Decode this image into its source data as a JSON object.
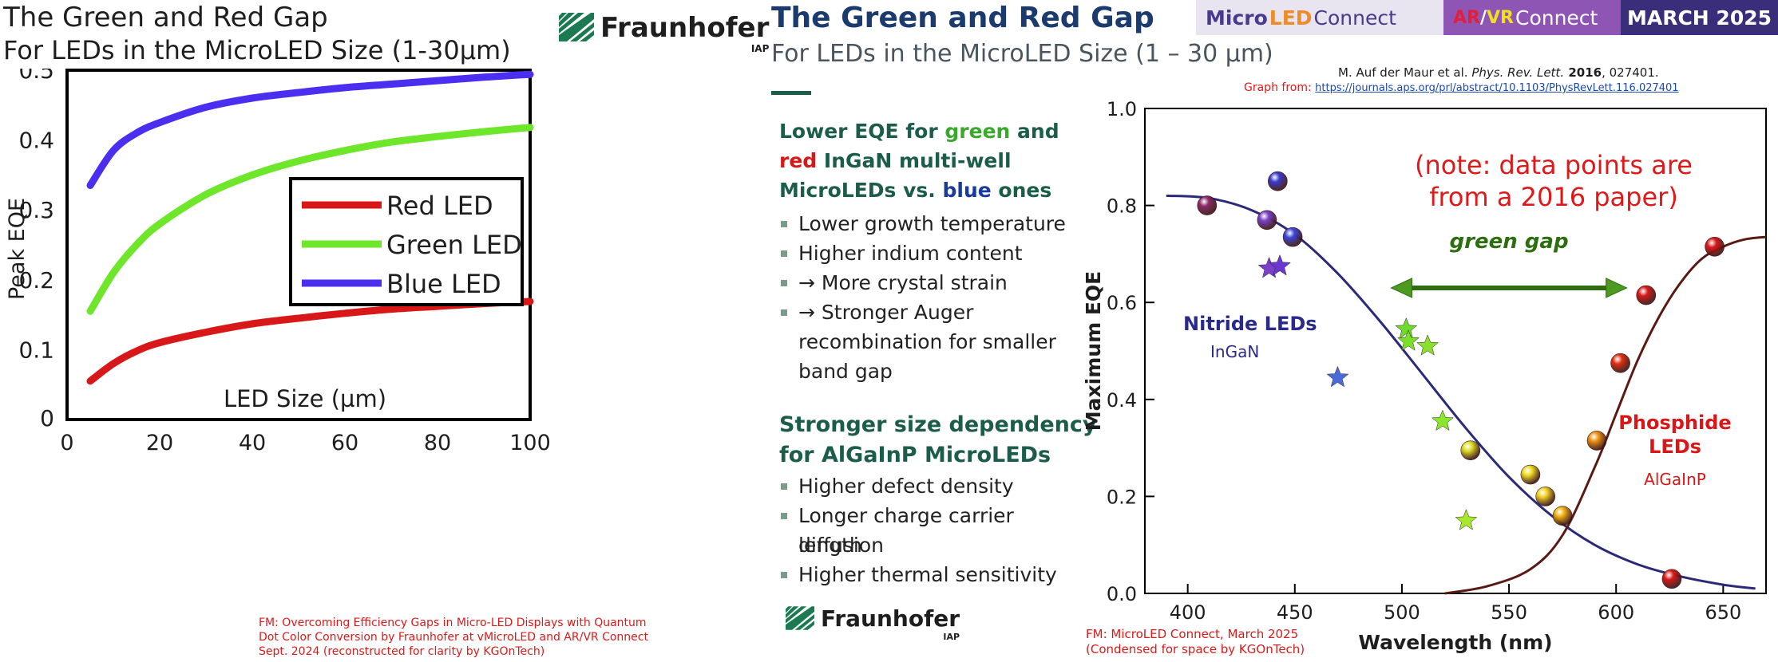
{
  "left_slide": {
    "title": "The Green and Red Gap",
    "subtitle": "For LEDs in the MicroLED Size (1-30µm)",
    "logo_text": "Fraunhofer",
    "logo_sub": "IAP",
    "footnote_lines": [
      "FM: Overcoming Efficiency Gaps in Micro-LED Displays with Quantum",
      "Dot Color Conversion by Fraunhofer at vMicroLED and AR/VR Connect",
      "Sept. 2024 (reconstructed for clarity by KGOnTech)"
    ]
  },
  "right_slide": {
    "title": "The Green and Red Gap",
    "subtitle": "For LEDs in the MicroLED Size (1 – 30 µm)",
    "banner": {
      "microled_a": "Micro",
      "microled_b": "LED",
      "microled_c": "Connect",
      "arvr_a": "AR",
      "arvr_sep": "/",
      "arvr_b": "VR",
      "arvr_c": "Connect",
      "date": "MARCH 2025",
      "colors": {
        "navy": "#4a3a8c",
        "purple_bg": "#8e55b5",
        "red": "#e0203a",
        "orange": "#f08c28"
      }
    },
    "section1_line1_a": "Lower EQE for ",
    "section1_line1_b": "green",
    "section1_line1_c": " and",
    "section1_line2_a": "red",
    "section1_line2_b": " InGaN multi-well",
    "section1_line3_a": "MicroLEDs vs. ",
    "section1_line3_b": "blue",
    "section1_line3_c": " ones",
    "section1_bullets": [
      "Lower growth temperature",
      "Higher indium content",
      "→ More crystal strain",
      "→ Stronger Auger"
    ],
    "section1_bullet4_cont1": "recombination for smaller",
    "section1_bullet4_cont2": "band gap",
    "section2_line1": "Stronger size dependency",
    "section2_line2": "for AlGaInP MicroLEDs",
    "section2_bullets": [
      "Higher defect density",
      "Longer charge carrier diffusion"
    ],
    "section2_bullet2_cont": "length",
    "section2_bullet3": "Higher thermal sensitivity",
    "logo_text": "Fraunhofer",
    "logo_sub": "IAP",
    "footnote_lines": [
      "FM: MicroLED Connect, March 2025",
      "(Condensed for space by KGOnTech)"
    ],
    "citation_a": "M. Auf der Maur et al. ",
    "citation_journal": "Phys. Rev. Lett.",
    "citation_year": " 2016",
    "citation_rest": ", 027401.",
    "graph_from_label": "Graph from:",
    "graph_from_url": "https://journals.aps.org/prl/abstract/10.1103/PhysRevLett.116.027401"
  },
  "colors": {
    "red": "#d81818",
    "green": "#6ee62a",
    "blue": "#4a2ff0",
    "teal": "#1b5c4a",
    "navy_curve": "#2a2a78",
    "brown_curve": "#5a1a14",
    "dark_green_arrow": "#2e6e10",
    "note_red": "#e01818"
  },
  "chart_data": [
    {
      "type": "line",
      "xlabel": "LED Size (µm)",
      "ylabel": "Peak EQE",
      "xlim": [
        0,
        100
      ],
      "ylim": [
        0,
        0.5
      ],
      "x_ticks": [
        0,
        20,
        40,
        60,
        80,
        100
      ],
      "y_ticks": [
        0,
        0.1,
        0.2,
        0.3,
        0.4,
        0.5
      ],
      "y_tick_labels": [
        "0",
        "0.1",
        "0.2",
        "0.3",
        "0.4",
        "0.5"
      ],
      "grid": false,
      "legend": "center-right",
      "series": [
        {
          "name": "Red LED",
          "color": "#d81818",
          "x": [
            5,
            10,
            15,
            20,
            30,
            40,
            50,
            60,
            70,
            80,
            90,
            100
          ],
          "y": [
            0.055,
            0.08,
            0.098,
            0.11,
            0.125,
            0.137,
            0.145,
            0.152,
            0.158,
            0.162,
            0.166,
            0.169
          ]
        },
        {
          "name": "Green LED",
          "color": "#6ee62a",
          "x": [
            5,
            10,
            15,
            20,
            30,
            40,
            50,
            60,
            70,
            80,
            90,
            100
          ],
          "y": [
            0.155,
            0.21,
            0.25,
            0.28,
            0.322,
            0.35,
            0.37,
            0.385,
            0.397,
            0.405,
            0.412,
            0.418
          ]
        },
        {
          "name": "Blue LED",
          "color": "#4a2ff0",
          "x": [
            5,
            10,
            15,
            20,
            30,
            40,
            50,
            60,
            70,
            80,
            90,
            100
          ],
          "y": [
            0.335,
            0.385,
            0.41,
            0.425,
            0.447,
            0.46,
            0.468,
            0.475,
            0.48,
            0.485,
            0.49,
            0.494
          ]
        }
      ]
    },
    {
      "type": "scatter",
      "xlabel": "Wavelength (nm)",
      "ylabel": "Maximum EQE",
      "xlim": [
        380,
        670
      ],
      "ylim": [
        0,
        1.0
      ],
      "x_ticks": [
        400,
        450,
        500,
        550,
        600,
        650
      ],
      "y_ticks": [
        0,
        0.2,
        0.4,
        0.6,
        0.8,
        1.0
      ],
      "y_tick_labels": [
        "0.0",
        "0.2",
        "0.4",
        "0.6",
        "0.8",
        "1.0"
      ],
      "grid": false,
      "annotations": {
        "note_line1": "(note: data points are",
        "note_line2": "from a 2016 paper)",
        "green_gap": "green gap",
        "nitride_label": "Nitride LEDs",
        "nitride_sub": "InGaN",
        "phosphide_label1": "Phosphide",
        "phosphide_label2": "LEDs",
        "phosphide_sub": "AlGaInP"
      },
      "arrow_range": [
        495,
        605
      ],
      "arrow_y": 0.63,
      "nitride_curve": {
        "x": [
          390,
          410,
          430,
          450,
          470,
          490,
          510,
          530,
          550,
          570,
          590,
          610,
          630,
          650,
          665
        ],
        "y": [
          0.82,
          0.815,
          0.79,
          0.74,
          0.66,
          0.56,
          0.45,
          0.34,
          0.24,
          0.16,
          0.1,
          0.06,
          0.035,
          0.018,
          0.01
        ]
      },
      "phosphide_curve": {
        "x": [
          520,
          540,
          560,
          575,
          590,
          600,
          610,
          620,
          630,
          640,
          650,
          660,
          670
        ],
        "y": [
          0.0,
          0.015,
          0.05,
          0.12,
          0.26,
          0.37,
          0.48,
          0.57,
          0.64,
          0.69,
          0.715,
          0.73,
          0.735
        ]
      },
      "spheres": [
        {
          "x": 409,
          "y": 0.8,
          "color": "#8a2a6a"
        },
        {
          "x": 437,
          "y": 0.77,
          "color": "#7a40c8"
        },
        {
          "x": 442,
          "y": 0.85,
          "color": "#3a3ad0"
        },
        {
          "x": 449,
          "y": 0.735,
          "color": "#3a46d8"
        },
        {
          "x": 532,
          "y": 0.295,
          "color": "#dede22"
        },
        {
          "x": 560,
          "y": 0.245,
          "color": "#eedd22"
        },
        {
          "x": 567,
          "y": 0.2,
          "color": "#f2d020"
        },
        {
          "x": 575,
          "y": 0.16,
          "color": "#f0b010"
        },
        {
          "x": 591,
          "y": 0.315,
          "color": "#f09010"
        },
        {
          "x": 602,
          "y": 0.475,
          "color": "#e03010"
        },
        {
          "x": 614,
          "y": 0.615,
          "color": "#d81818"
        },
        {
          "x": 626,
          "y": 0.03,
          "color": "#d81818"
        },
        {
          "x": 646,
          "y": 0.715,
          "color": "#d81818"
        }
      ],
      "stars": [
        {
          "x": 438,
          "y": 0.67,
          "color": "#7a40c8"
        },
        {
          "x": 443,
          "y": 0.675,
          "color": "#6a38d0"
        },
        {
          "x": 470,
          "y": 0.445,
          "color": "#4a6ad8"
        },
        {
          "x": 502,
          "y": 0.545,
          "color": "#6edc2a"
        },
        {
          "x": 503,
          "y": 0.52,
          "color": "#7ae02a"
        },
        {
          "x": 512,
          "y": 0.51,
          "color": "#8ae02a"
        },
        {
          "x": 519,
          "y": 0.355,
          "color": "#8ae82a"
        },
        {
          "x": 530,
          "y": 0.15,
          "color": "#a8e82a"
        }
      ]
    }
  ]
}
